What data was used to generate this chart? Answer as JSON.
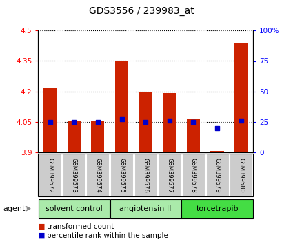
{
  "title": "GDS3556 / 239983_at",
  "samples": [
    "GSM399572",
    "GSM399573",
    "GSM399574",
    "GSM399575",
    "GSM399576",
    "GSM399577",
    "GSM399578",
    "GSM399579",
    "GSM399580"
  ],
  "red_values": [
    4.215,
    4.058,
    4.052,
    4.348,
    4.2,
    4.192,
    4.065,
    3.908,
    4.435
  ],
  "blue_values": [
    25,
    25,
    25,
    27,
    25,
    26,
    25,
    20,
    26
  ],
  "base_value": 3.9,
  "ylim_left": [
    3.9,
    4.5
  ],
  "ylim_right": [
    0,
    100
  ],
  "yticks_left": [
    3.9,
    4.05,
    4.2,
    4.35,
    4.5
  ],
  "yticks_right": [
    0,
    25,
    50,
    75,
    100
  ],
  "ytick_labels_left": [
    "3.9",
    "4.05",
    "4.2",
    "4.35",
    "4.5"
  ],
  "ytick_labels_right": [
    "0",
    "25",
    "50",
    "75",
    "100%"
  ],
  "groups": [
    {
      "label": "solvent control",
      "start": 0,
      "end": 2
    },
    {
      "label": "angiotensin II",
      "start": 3,
      "end": 5
    },
    {
      "label": "torcetrapib",
      "start": 6,
      "end": 8
    }
  ],
  "group_colors": [
    "#aaeaaa",
    "#aaeaaa",
    "#44dd44"
  ],
  "agent_label": "agent",
  "bar_color": "#CC2200",
  "dot_color": "#0000CC",
  "bar_width": 0.55,
  "bg_sample_row": "#cccccc",
  "legend_items": [
    "transformed count",
    "percentile rank within the sample"
  ],
  "title_fontsize": 10,
  "axis_fontsize": 7.5,
  "tick_fontsize": 7.5,
  "sample_fontsize": 6,
  "group_fontsize": 8,
  "legend_fontsize": 7.5
}
